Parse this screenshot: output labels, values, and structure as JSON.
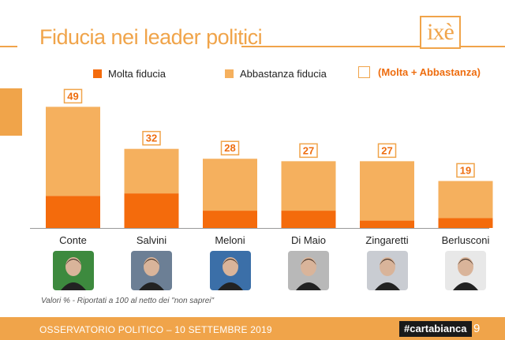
{
  "header": {
    "title": "Fiducia nei leader politici",
    "logo_text": "ixè"
  },
  "legend": {
    "molta": "Molta fiducia",
    "abbastanza": "Abbastanza fiducia",
    "total": "(Molta + Abbastanza)"
  },
  "colors": {
    "molta": "#f46b0c",
    "abbastanza": "#f5b05e",
    "accent": "#f0a44a",
    "total_label": "#ee6d0f"
  },
  "chart_data": {
    "type": "bar",
    "stacked": true,
    "categories": [
      "Conte",
      "Salvini",
      "Meloni",
      "Di Maio",
      "Zingaretti",
      "Berlusconi"
    ],
    "series": [
      {
        "name": "Molta fiducia",
        "values": [
          13,
          14,
          7,
          7,
          3,
          4
        ]
      },
      {
        "name": "Abbastanza fiducia",
        "values": [
          36,
          18,
          21,
          20,
          24,
          15
        ]
      }
    ],
    "totals": [
      49,
      32,
      28,
      27,
      27,
      19
    ],
    "total_label": "(Molta + Abbastanza)",
    "ylim": [
      0,
      52
    ],
    "grid": false,
    "legend_position": "top"
  },
  "note": "Valori % - Riportati a 100 al netto dei \"non saprei\"",
  "footer": {
    "text": "OSSERVATORIO POLITICO – 10 SETTEMBRE 2019",
    "hashtag": "#cartabianca",
    "page": "9"
  },
  "photos": [
    {
      "icon": "portrait-icon",
      "bg": "#3d8a3e"
    },
    {
      "icon": "portrait-icon",
      "bg": "#6c7f95"
    },
    {
      "icon": "portrait-icon",
      "bg": "#3b6fa8"
    },
    {
      "icon": "portrait-icon",
      "bg": "#b8b8b8"
    },
    {
      "icon": "portrait-icon",
      "bg": "#c9ccd2"
    },
    {
      "icon": "portrait-icon",
      "bg": "#e8e8e8"
    }
  ]
}
